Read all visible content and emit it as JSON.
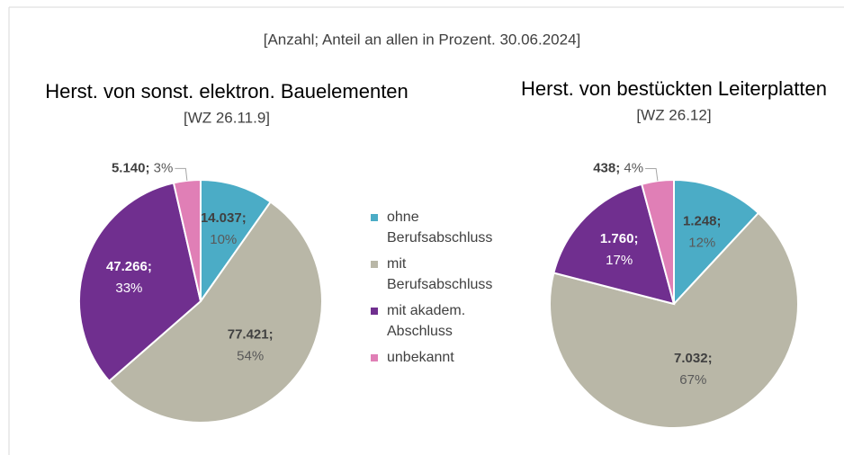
{
  "note": "[Anzahl; Anteil an allen in Prozent. 30.06.2024]",
  "chart_data": [
    {
      "type": "pie",
      "title": "Herst. von sonst. elektron. Bauelementen",
      "subtitle": "[WZ 26.11.9]",
      "categories": [
        "ohne Berufsabschluss",
        "mit Berufsabschluss",
        "mit akadem. Abschluss",
        "unbekannt"
      ],
      "values": [
        14037,
        77421,
        47266,
        5140
      ],
      "value_labels": [
        "14.037;",
        "77.421;",
        "47.266;",
        "5.140;"
      ],
      "percent_labels": [
        "10%",
        "54%",
        "33%",
        "3%"
      ],
      "colors": [
        "#4bacc6",
        "#b9b7a7",
        "#702f8f",
        "#e07fb6"
      ]
    },
    {
      "type": "pie",
      "title": "Herst. von bestückten Leiterplatten",
      "subtitle": "[WZ 26.12]",
      "categories": [
        "ohne Berufsabschluss",
        "mit Berufsabschluss",
        "mit akadem. Abschluss",
        "unbekannt"
      ],
      "values": [
        1248,
        7032,
        1760,
        438
      ],
      "value_labels": [
        "1.248;",
        "7.032;",
        "1.760;",
        "438;"
      ],
      "percent_labels": [
        "12%",
        "67%",
        "17%",
        "4%"
      ],
      "colors": [
        "#4bacc6",
        "#b9b7a7",
        "#702f8f",
        "#e07fb6"
      ]
    }
  ]
}
